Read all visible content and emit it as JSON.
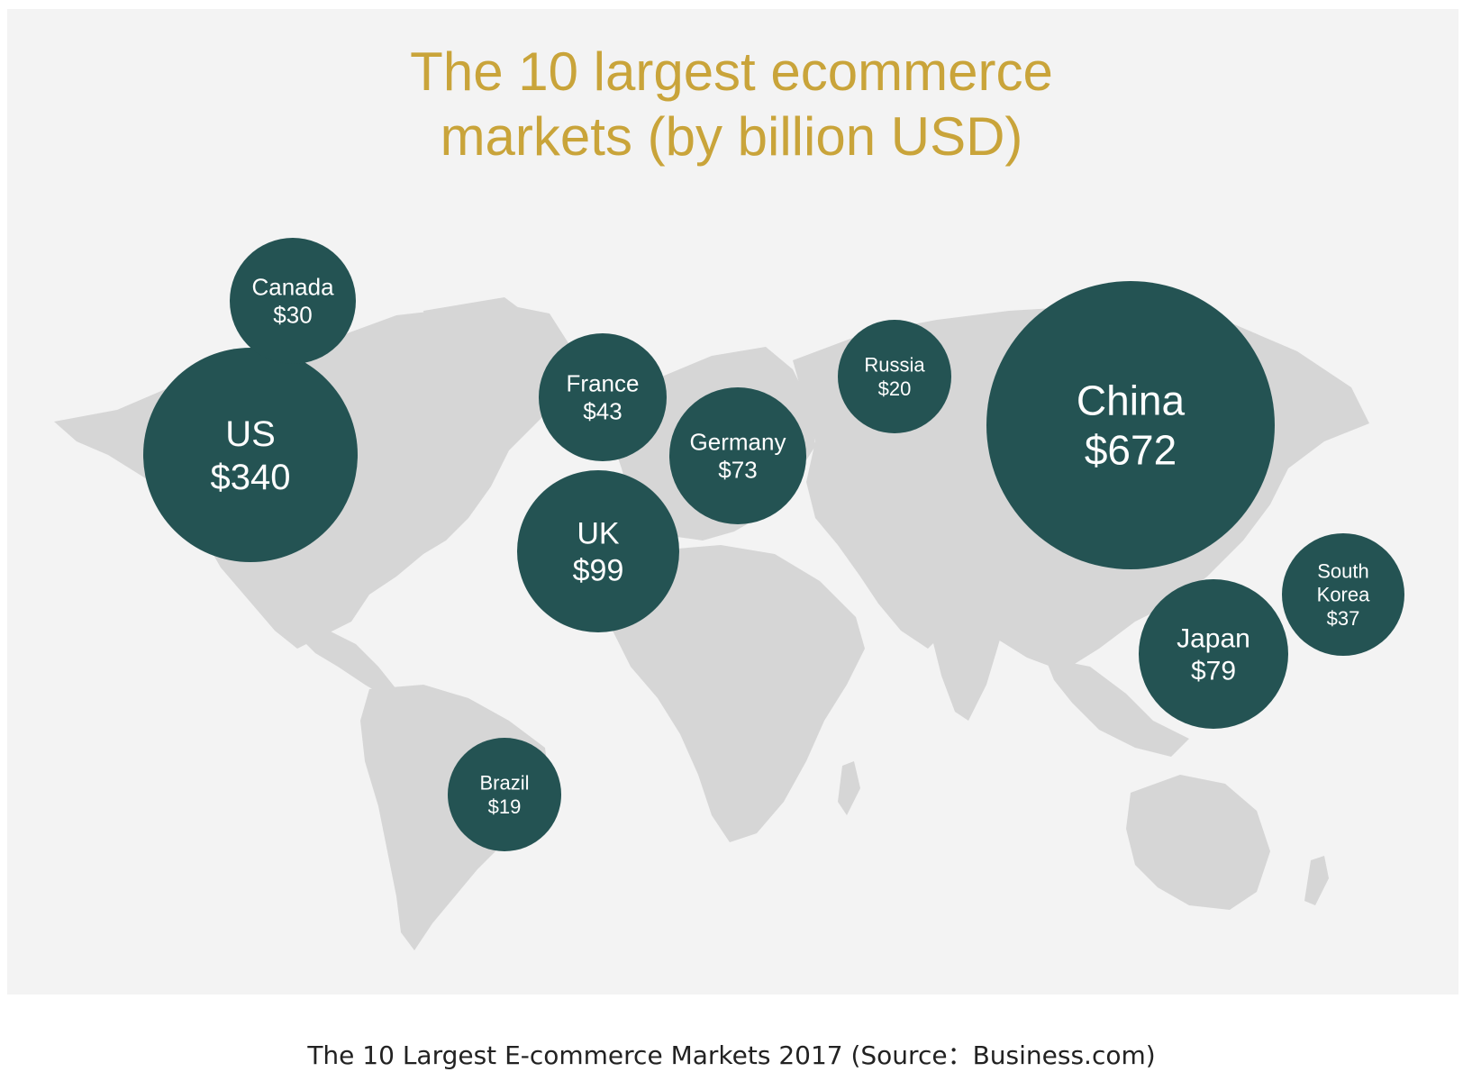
{
  "title_line1": "The 10 largest ecommerce",
  "title_line2": "markets (by billion USD)",
  "caption": "The 10 Largest E-commerce Markets 2017 (Source：Business.com)",
  "colors": {
    "background": "#f3f3f3",
    "land": "#d6d6d6",
    "bubble": "#245353",
    "title": "#c9a43a"
  },
  "chart_data": {
    "type": "bubble-map",
    "title": "The 10 largest ecommerce markets (by billion USD)",
    "unit": "billion USD",
    "markets": [
      {
        "country": "China",
        "value": 672,
        "label": "$672"
      },
      {
        "country": "US",
        "value": 340,
        "label": "$340"
      },
      {
        "country": "UK",
        "value": 99,
        "label": "$99"
      },
      {
        "country": "Japan",
        "value": 79,
        "label": "$79"
      },
      {
        "country": "Germany",
        "value": 73,
        "label": "$73"
      },
      {
        "country": "France",
        "value": 43,
        "label": "$43"
      },
      {
        "country": "South Korea",
        "value": 37,
        "label": "$37"
      },
      {
        "country": "Canada",
        "value": 30,
        "label": "$30"
      },
      {
        "country": "Russia",
        "value": 20,
        "label": "$20"
      },
      {
        "country": "Brazil",
        "value": 19,
        "label": "$19"
      }
    ]
  }
}
